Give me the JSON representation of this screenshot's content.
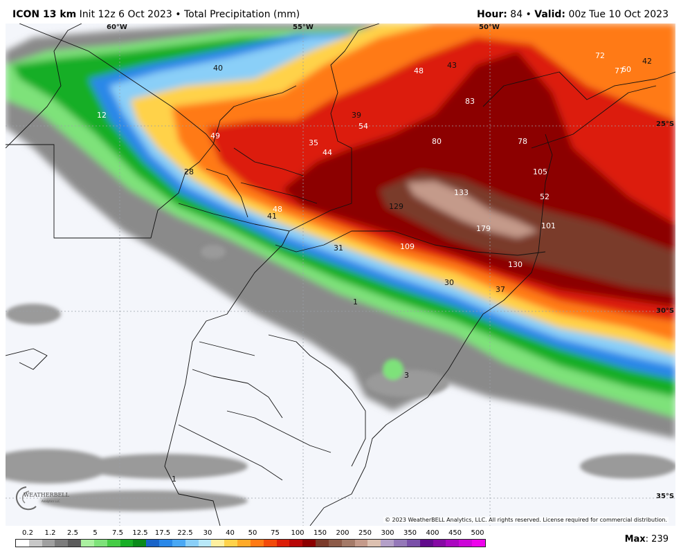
{
  "header": {
    "model": "ICON 13 km",
    "init": " Init 12z 6 Oct 2023",
    "sep": " • ",
    "product": "Total Precipitation (mm)",
    "hour_label": "Hour:",
    "hour_value": " 84 • ",
    "valid_label": "Valid:",
    "valid_value": " 00z Tue 10 Oct 2023"
  },
  "map": {
    "longitude_labels": [
      "60°W",
      "55°W",
      "50°W"
    ],
    "latitude_labels": [
      "25°S",
      "30°S",
      "35°S"
    ],
    "point_values": [
      "72",
      "42",
      "48",
      "43",
      "77",
      "60",
      "83",
      "39",
      "54",
      "40",
      "12",
      "49",
      "35",
      "80",
      "78",
      "44",
      "105",
      "28",
      "133",
      "52",
      "129",
      "48",
      "41",
      "179",
      "101",
      "31",
      "109",
      "130",
      "30",
      "37",
      "1",
      "3",
      "1"
    ],
    "copyright": "© 2023 WeatherBELL Analytics, LLC. All rights reserved. License required for commercial distribution.",
    "logo_text": "WEATHERBELL",
    "logo_sub": "Analytics LLC",
    "colors": {
      "ocean_land": "#f4f6fb",
      "grid": "#9aa0a8",
      "border": "#111111"
    }
  },
  "legend": {
    "ticks": [
      "0.2",
      "1.2",
      "2.5",
      "5",
      "7.5",
      "12.5",
      "17.5",
      "22.5",
      "30",
      "40",
      "50",
      "75",
      "100",
      "150",
      "200",
      "250",
      "300",
      "350",
      "400",
      "450",
      "500"
    ],
    "colors": [
      "#ffffff",
      "#c8c8c8",
      "#a0a0a0",
      "#7c7c7c",
      "#5c5c5c",
      "#aaf0a0",
      "#7ee27a",
      "#46cc46",
      "#18ae26",
      "#0a8a1a",
      "#1a64c8",
      "#2a88e8",
      "#4aa8f4",
      "#8acff8",
      "#b8e8f8",
      "#fff0a0",
      "#ffd24a",
      "#ffaa28",
      "#ff7a14",
      "#f24a0a",
      "#dc1e08",
      "#b80808",
      "#8c0000",
      "#7a3a2a",
      "#8c5a48",
      "#a47a68",
      "#c49a8a",
      "#dcc0b0",
      "#b4a0c8",
      "#9478b8",
      "#7a50a8",
      "#620c8c",
      "#860aa4",
      "#aa08c0",
      "#cc06d8",
      "#ee04ec"
    ],
    "max_label": "Max",
    "max_value": ": 239"
  }
}
